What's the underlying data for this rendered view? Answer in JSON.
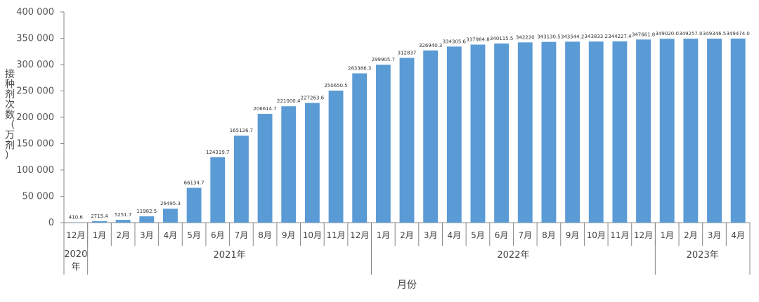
{
  "chart_data": {
    "type": "bar",
    "title": "",
    "xlabel": "月份",
    "ylabel": "接种剂次数（万剂）",
    "ylabel_chars": [
      "接",
      "种",
      "剂",
      "次",
      "数",
      "（",
      "万",
      "剂",
      "）"
    ],
    "ylim": [
      0,
      400000
    ],
    "yticks": [
      "0",
      "50 000",
      "100 000",
      "150 000",
      "200 000",
      "250 000",
      "300 000",
      "350 000",
      "400 000"
    ],
    "grid": false,
    "bar_color": "#5b9bd5",
    "categories": [
      "12月",
      "1月",
      "2月",
      "3月",
      "4月",
      "5月",
      "6月",
      "7月",
      "8月",
      "9月",
      "10月",
      "11月",
      "12月",
      "1月",
      "2月",
      "3月",
      "4月",
      "5月",
      "6月",
      "7月",
      "8月",
      "9月",
      "10月",
      "11月",
      "12月",
      "1月",
      "2月",
      "3月",
      "4月"
    ],
    "values": [
      410.6,
      2715.4,
      5251.7,
      11982.5,
      26495.3,
      66134.7,
      124319.7,
      165126.7,
      206614.7,
      221000.4,
      227263.6,
      250650.5,
      283386.3,
      299905.7,
      312837,
      326940.3,
      334305.6,
      337984.8,
      340115.5,
      342220,
      343130.5,
      343544.2,
      343833.2,
      344227.4,
      347661.8,
      349020.0,
      349257.0,
      349346.5,
      349474.0
    ],
    "data_labels": [
      "410.6",
      "2715.4",
      "5251.7",
      "11982.5",
      "26495.3",
      "66134.7",
      "124319.7",
      "165126.7",
      "206614.7",
      "221000.4",
      "227263.6",
      "250650.5",
      "283386.3",
      "299905.7",
      "312837",
      "326940.3",
      "334305.6",
      "337984.8",
      "340115.5",
      "342220",
      "343130.5",
      "343544.2",
      "343833.2",
      "344227.4",
      "347661.8",
      "349020.0",
      "349257.0",
      "349346.5",
      "349474.0"
    ],
    "year_groups": [
      {
        "label": "2020年",
        "start": 0,
        "end": 0
      },
      {
        "label": "2021年",
        "start": 1,
        "end": 12
      },
      {
        "label": "2022年",
        "start": 13,
        "end": 24
      },
      {
        "label": "2023年",
        "start": 25,
        "end": 28
      }
    ]
  }
}
